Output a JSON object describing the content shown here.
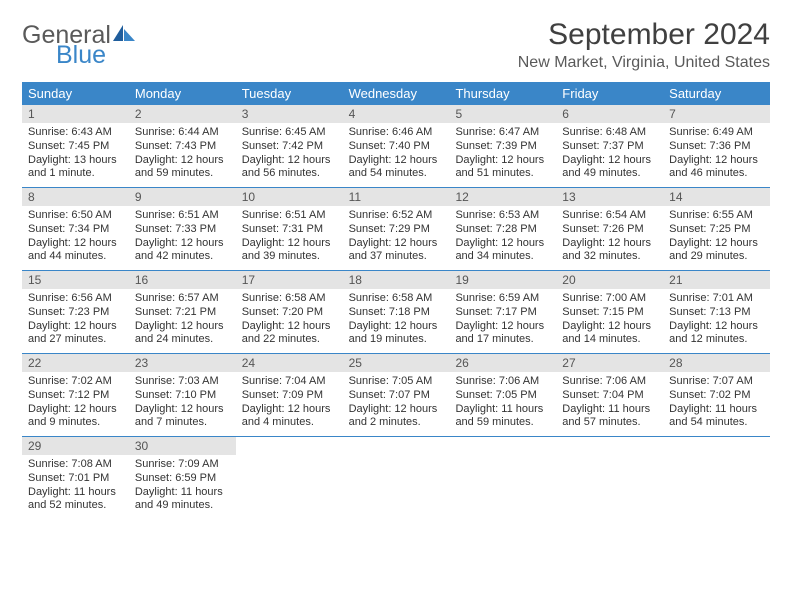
{
  "logo": {
    "text_general": "General",
    "text_blue": "Blue"
  },
  "title": "September 2024",
  "location": "New Market, Virginia, United States",
  "colors": {
    "header_bg": "#3a86c8",
    "header_text": "#ffffff",
    "daynum_bg": "#e4e4e4",
    "border": "#3a86c8",
    "logo_gray": "#5a5a5a",
    "logo_blue": "#3a86c8"
  },
  "day_names": [
    "Sunday",
    "Monday",
    "Tuesday",
    "Wednesday",
    "Thursday",
    "Friday",
    "Saturday"
  ],
  "weeks": [
    [
      {
        "day": "1",
        "sunrise": "Sunrise: 6:43 AM",
        "sunset": "Sunset: 7:45 PM",
        "daylight": "Daylight: 13 hours and 1 minute."
      },
      {
        "day": "2",
        "sunrise": "Sunrise: 6:44 AM",
        "sunset": "Sunset: 7:43 PM",
        "daylight": "Daylight: 12 hours and 59 minutes."
      },
      {
        "day": "3",
        "sunrise": "Sunrise: 6:45 AM",
        "sunset": "Sunset: 7:42 PM",
        "daylight": "Daylight: 12 hours and 56 minutes."
      },
      {
        "day": "4",
        "sunrise": "Sunrise: 6:46 AM",
        "sunset": "Sunset: 7:40 PM",
        "daylight": "Daylight: 12 hours and 54 minutes."
      },
      {
        "day": "5",
        "sunrise": "Sunrise: 6:47 AM",
        "sunset": "Sunset: 7:39 PM",
        "daylight": "Daylight: 12 hours and 51 minutes."
      },
      {
        "day": "6",
        "sunrise": "Sunrise: 6:48 AM",
        "sunset": "Sunset: 7:37 PM",
        "daylight": "Daylight: 12 hours and 49 minutes."
      },
      {
        "day": "7",
        "sunrise": "Sunrise: 6:49 AM",
        "sunset": "Sunset: 7:36 PM",
        "daylight": "Daylight: 12 hours and 46 minutes."
      }
    ],
    [
      {
        "day": "8",
        "sunrise": "Sunrise: 6:50 AM",
        "sunset": "Sunset: 7:34 PM",
        "daylight": "Daylight: 12 hours and 44 minutes."
      },
      {
        "day": "9",
        "sunrise": "Sunrise: 6:51 AM",
        "sunset": "Sunset: 7:33 PM",
        "daylight": "Daylight: 12 hours and 42 minutes."
      },
      {
        "day": "10",
        "sunrise": "Sunrise: 6:51 AM",
        "sunset": "Sunset: 7:31 PM",
        "daylight": "Daylight: 12 hours and 39 minutes."
      },
      {
        "day": "11",
        "sunrise": "Sunrise: 6:52 AM",
        "sunset": "Sunset: 7:29 PM",
        "daylight": "Daylight: 12 hours and 37 minutes."
      },
      {
        "day": "12",
        "sunrise": "Sunrise: 6:53 AM",
        "sunset": "Sunset: 7:28 PM",
        "daylight": "Daylight: 12 hours and 34 minutes."
      },
      {
        "day": "13",
        "sunrise": "Sunrise: 6:54 AM",
        "sunset": "Sunset: 7:26 PM",
        "daylight": "Daylight: 12 hours and 32 minutes."
      },
      {
        "day": "14",
        "sunrise": "Sunrise: 6:55 AM",
        "sunset": "Sunset: 7:25 PM",
        "daylight": "Daylight: 12 hours and 29 minutes."
      }
    ],
    [
      {
        "day": "15",
        "sunrise": "Sunrise: 6:56 AM",
        "sunset": "Sunset: 7:23 PM",
        "daylight": "Daylight: 12 hours and 27 minutes."
      },
      {
        "day": "16",
        "sunrise": "Sunrise: 6:57 AM",
        "sunset": "Sunset: 7:21 PM",
        "daylight": "Daylight: 12 hours and 24 minutes."
      },
      {
        "day": "17",
        "sunrise": "Sunrise: 6:58 AM",
        "sunset": "Sunset: 7:20 PM",
        "daylight": "Daylight: 12 hours and 22 minutes."
      },
      {
        "day": "18",
        "sunrise": "Sunrise: 6:58 AM",
        "sunset": "Sunset: 7:18 PM",
        "daylight": "Daylight: 12 hours and 19 minutes."
      },
      {
        "day": "19",
        "sunrise": "Sunrise: 6:59 AM",
        "sunset": "Sunset: 7:17 PM",
        "daylight": "Daylight: 12 hours and 17 minutes."
      },
      {
        "day": "20",
        "sunrise": "Sunrise: 7:00 AM",
        "sunset": "Sunset: 7:15 PM",
        "daylight": "Daylight: 12 hours and 14 minutes."
      },
      {
        "day": "21",
        "sunrise": "Sunrise: 7:01 AM",
        "sunset": "Sunset: 7:13 PM",
        "daylight": "Daylight: 12 hours and 12 minutes."
      }
    ],
    [
      {
        "day": "22",
        "sunrise": "Sunrise: 7:02 AM",
        "sunset": "Sunset: 7:12 PM",
        "daylight": "Daylight: 12 hours and 9 minutes."
      },
      {
        "day": "23",
        "sunrise": "Sunrise: 7:03 AM",
        "sunset": "Sunset: 7:10 PM",
        "daylight": "Daylight: 12 hours and 7 minutes."
      },
      {
        "day": "24",
        "sunrise": "Sunrise: 7:04 AM",
        "sunset": "Sunset: 7:09 PM",
        "daylight": "Daylight: 12 hours and 4 minutes."
      },
      {
        "day": "25",
        "sunrise": "Sunrise: 7:05 AM",
        "sunset": "Sunset: 7:07 PM",
        "daylight": "Daylight: 12 hours and 2 minutes."
      },
      {
        "day": "26",
        "sunrise": "Sunrise: 7:06 AM",
        "sunset": "Sunset: 7:05 PM",
        "daylight": "Daylight: 11 hours and 59 minutes."
      },
      {
        "day": "27",
        "sunrise": "Sunrise: 7:06 AM",
        "sunset": "Sunset: 7:04 PM",
        "daylight": "Daylight: 11 hours and 57 minutes."
      },
      {
        "day": "28",
        "sunrise": "Sunrise: 7:07 AM",
        "sunset": "Sunset: 7:02 PM",
        "daylight": "Daylight: 11 hours and 54 minutes."
      }
    ],
    [
      {
        "day": "29",
        "sunrise": "Sunrise: 7:08 AM",
        "sunset": "Sunset: 7:01 PM",
        "daylight": "Daylight: 11 hours and 52 minutes."
      },
      {
        "day": "30",
        "sunrise": "Sunrise: 7:09 AM",
        "sunset": "Sunset: 6:59 PM",
        "daylight": "Daylight: 11 hours and 49 minutes."
      },
      null,
      null,
      null,
      null,
      null
    ]
  ]
}
